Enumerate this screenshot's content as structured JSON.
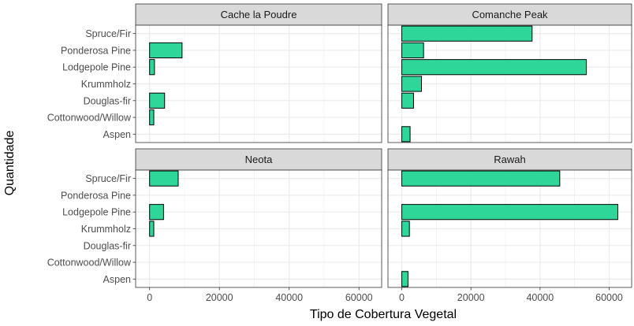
{
  "chart_data": {
    "type": "bar",
    "orientation": "horizontal",
    "xlabel": "Tipo de Cobertura Vegetal",
    "ylabel": "Quantidade",
    "categories": [
      "Spruce/Fir",
      "Ponderosa Pine",
      "Lodgepole Pine",
      "Krummholz",
      "Douglas-fir",
      "Cottonwood/Willow",
      "Aspen"
    ],
    "x_ticks": [
      0,
      20000,
      40000,
      60000
    ],
    "xlim": [
      -4000,
      66500
    ],
    "grid": true,
    "bar_fill": "#2ed69a",
    "bar_stroke": "#000000",
    "strip_fill": "#d9d9d9",
    "panel_background": "#ffffff",
    "grid_color": "#ebebeb",
    "panels": [
      {
        "title": "Cache la Poudre",
        "values": [
          0,
          9300,
          1400,
          0,
          4300,
          1200,
          0
        ]
      },
      {
        "title": "Comanche Peak",
        "values": [
          37700,
          6300,
          53400,
          5700,
          3400,
          0,
          2400
        ]
      },
      {
        "title": "Neota",
        "values": [
          8200,
          0,
          4000,
          1200,
          0,
          0,
          0
        ]
      },
      {
        "title": "Rawah",
        "values": [
          45700,
          0,
          62500,
          2200,
          0,
          0,
          1800
        ]
      }
    ]
  }
}
